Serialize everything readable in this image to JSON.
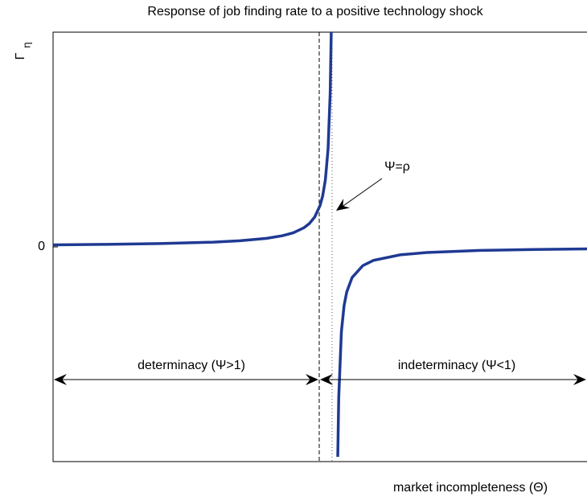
{
  "chart_data": {
    "type": "line",
    "title": "Response of job finding rate to a positive technology shock",
    "xlabel": "market incompleteness (Θ)",
    "ylabel": "Γ",
    "ylabel_sub": "η",
    "x": [
      0,
      0.1,
      0.2,
      0.3,
      0.35,
      0.4,
      0.43,
      0.45,
      0.47,
      0.48,
      0.49,
      0.5,
      0.505,
      0.51,
      0.515,
      0.519,
      0.521,
      0.527,
      0.5332,
      0.535,
      0.54,
      0.545,
      0.55,
      0.56,
      0.58,
      0.6,
      0.65,
      0.7,
      0.8,
      0.9,
      1.0
    ],
    "series": [
      {
        "name": "Γη",
        "color": "#1f3a93",
        "values": [
          0.0095,
          0.0117,
          0.0153,
          0.0221,
          0.0284,
          0.0397,
          0.0521,
          0.0658,
          0.0893,
          0.1087,
          0.1389,
          0.1923,
          0.2381,
          0.3125,
          0.4545,
          0.7143,
          1.0,
          null,
          -0.978,
          -0.703,
          -0.395,
          -0.274,
          -0.21,
          -0.143,
          -0.0875,
          -0.063,
          -0.0371,
          -0.0263,
          -0.0166,
          -0.0121,
          -0.0095
        ]
      }
    ],
    "xlim": [
      0,
      1
    ],
    "ylim": [
      -1,
      1
    ],
    "yticks": [
      0
    ],
    "annotations": [
      "Ψ=ρ",
      "determinacy (Ψ>1)",
      "indeterminacy (Ψ<1)"
    ]
  }
}
